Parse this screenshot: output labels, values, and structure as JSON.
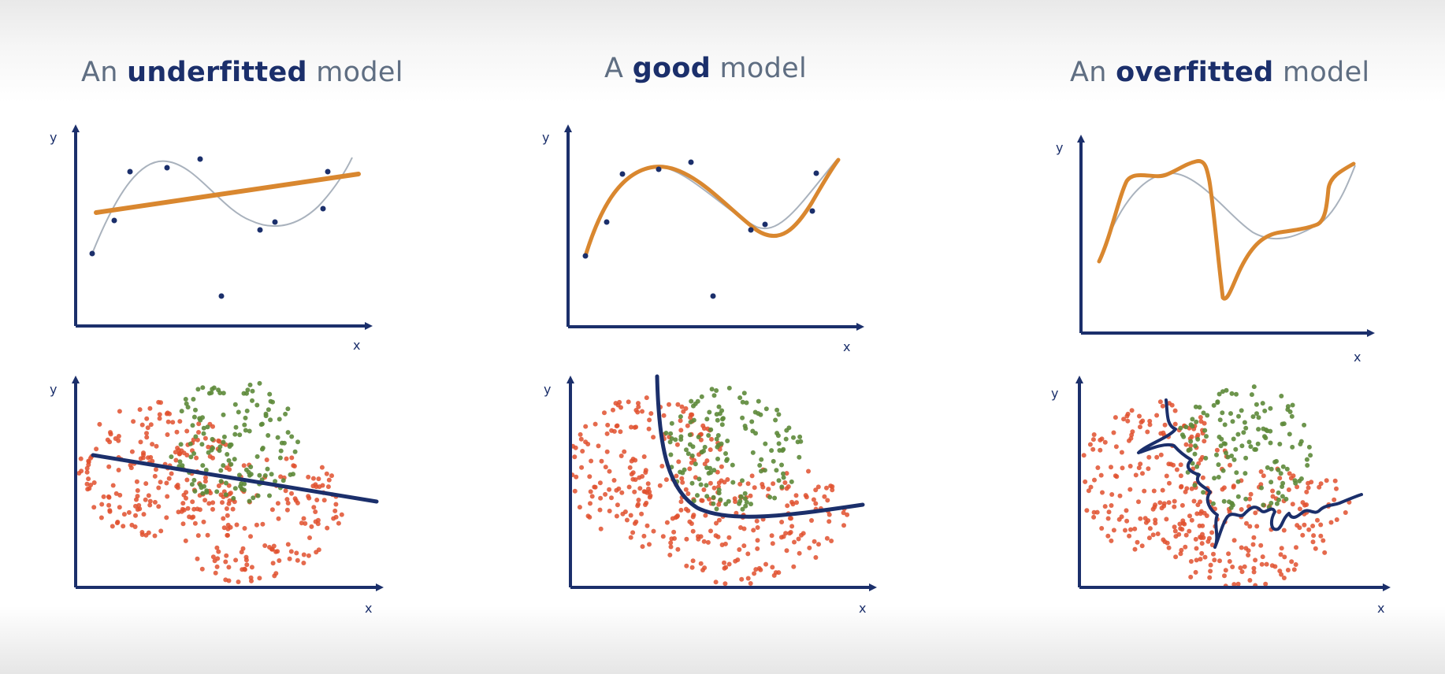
{
  "panels": [
    {
      "id": "underfitted",
      "title": {
        "prefix": "An",
        "emphasis": "underfitted",
        "suffix": "model"
      },
      "regression": {
        "x_label": "x",
        "y_label": "y"
      },
      "classification": {
        "x_label": "x",
        "y_label": "y"
      }
    },
    {
      "id": "good",
      "title": {
        "prefix": "A",
        "emphasis": "good",
        "suffix": "model"
      },
      "regression": {
        "x_label": "x",
        "y_label": "y"
      },
      "classification": {
        "x_label": "x",
        "y_label": "y"
      }
    },
    {
      "id": "overfitted",
      "title": {
        "prefix": "An",
        "emphasis": "overfitted",
        "suffix": "model"
      },
      "regression": {
        "x_label": "x",
        "y_label": "y"
      },
      "classification": {
        "x_label": "x",
        "y_label": "y"
      }
    }
  ],
  "colors": {
    "axis": "#1b2f6b",
    "fit_curve": "#d9872f",
    "true_curve": "#a9b2bd",
    "data_point": "#1b2f6b",
    "class_red": "#e0502e",
    "class_green": "#5d8a3a",
    "decision_boundary": "#1b2f6b"
  }
}
